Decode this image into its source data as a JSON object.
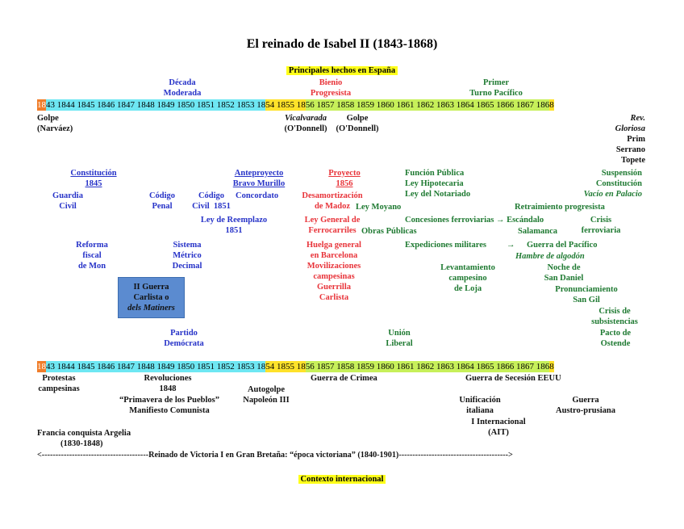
{
  "title": "El reinado de Isabel II (1843-1868)",
  "section_spain": "Principales hechos en España",
  "section_world": "Contexto internacional",
  "periods": {
    "decada_1": "Década",
    "decada_2": "Moderada",
    "bienio_1": "Bienio",
    "bienio_2": "Progresista",
    "turno_1": "Primer",
    "turno_2": "Turno Pacífico"
  },
  "timeline": {
    "s1": "18",
    "s2": "43 1844 1845 1846 1847 1848 1849 1850 1851 1852 1853 18",
    "s3": "54 1855 18",
    "s4": "56 1857 1858 1859 1860 1861 1862 1863 1864 1865 1866 1867 186",
    "s5": " 8"
  },
  "top": {
    "golpe_narvaez_1": "Golpe",
    "golpe_narvaez_2": "(Narváez)",
    "vicalvarada_1": "Vicalvarada",
    "vicalvarada_2": "(O'Donnell)",
    "golpe_odonnell_1": "Golpe",
    "golpe_odonnell_2": "(O'Donnell)",
    "rev_1": "Rev.",
    "rev_2": "Gloriosa",
    "rev_3": "Prim",
    "rev_4": "Serrano",
    "rev_5": "Topete"
  },
  "moderada": {
    "constitucion_1": "Constitución",
    "constitucion_2": "1845",
    "guardia_1": "Guardia",
    "guardia_2": "Civil",
    "codigo_penal_1": "Código",
    "codigo_penal_2": "Penal",
    "codigo_civil_1": "Código",
    "codigo_civil_2": "Civil",
    "codigo_civil_3": "1851",
    "concordato_1": "Concordato",
    "concordato_2": "1851",
    "anteproyecto_1": "Anteproyecto",
    "anteproyecto_2": "Bravo Murillo",
    "ley_reemplazo_1": "Ley de Reemplazo",
    "ley_reemplazo_2": "1851",
    "reforma_1": "Reforma",
    "reforma_2": "fiscal",
    "reforma_3": "de Mon",
    "sistema_1": "Sistema",
    "sistema_2": "Métrico",
    "sistema_3": "Decimal",
    "partido_1": "Partido",
    "partido_2": "Demócrata",
    "carlista_1": "II Guerra",
    "carlista_2": "Carlista o",
    "carlista_3": "dels Matiners"
  },
  "bienio": {
    "proyecto_1": "Proyecto",
    "proyecto_2": "1856",
    "desamort_1": "Desamortización",
    "desamort_2": "de Madoz",
    "ley_general_1": "Ley General de",
    "ley_general_2": "Ferrocarriles",
    "huelga_1": "Huelga general",
    "huelga_2": "en Barcelona",
    "movil_1": "Movilizaciones",
    "movil_2": "campesinas",
    "guerrilla_1": "Guerrilla",
    "guerrilla_2": "Carlista"
  },
  "union": {
    "funcion": "Función Pública",
    "hipotecaria": "Ley Hipotecaria",
    "notariado": "Ley del Notariado",
    "moyano": "Ley Moyano",
    "concesiones": "Concesiones ferroviarias → Escándalo",
    "salamanca": "Salamanca",
    "obras": "Obras Públicas",
    "expediciones": "Expediciones militares",
    "arrow": "→",
    "pacifico": "Guerra del Pacífico",
    "levant_1": "Levantamiento",
    "levant_2": "campesino",
    "levant_3": "de Loja",
    "union_1": "Unión",
    "union_2": "Liberal",
    "suspension_1": "Suspensión",
    "suspension_2": "Constitución",
    "vacio": "Vacío en Palacio",
    "retraimiento": "Retraimiento progresista",
    "crisis_1": "Crisis",
    "crisis_2": "ferroviaria",
    "hambre": "Hambre de algodón",
    "noche_1": "Noche de",
    "noche_2": "San Daniel",
    "pronunc_1": "Pronunciamiento",
    "pronunc_2": "San Gil",
    "subsist_1": "Crisis de",
    "subsist_2": "subsistencias",
    "ostende_1": "Pacto de",
    "ostende_2": "Ostende"
  },
  "world": {
    "protestas_1": "Protestas",
    "protestas_2": "campesinas",
    "revol_1": "Revoluciones",
    "revol_2": "1848",
    "primavera": "“Primavera de los Pueblos”",
    "manifiesto": "Manifiesto Comunista",
    "autogolpe_1": "Autogolpe",
    "autogolpe_2": "Napoleón III",
    "crimea": "Guerra de Crimea",
    "secesion": "Guerra de Secesión EEUU",
    "unif_1": "Unificación",
    "unif_2": "italiana",
    "internacional_1": "I Internacional",
    "internacional_2": "(AIT)",
    "austro_1": "Guerra",
    "austro_2": "Austro-prusiana",
    "argelia_1": "Francia conquista Argelia",
    "argelia_2": "(1830-1848)",
    "victoria": "<---------------------------------------Reinado de Victoria I en Gran Bretaña: “época victoriana” (1840-1901)---------------------------------------->"
  }
}
